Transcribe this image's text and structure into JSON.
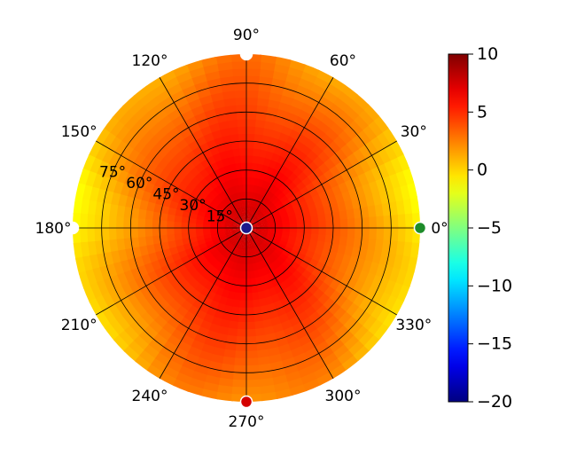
{
  "chart_data": {
    "type": "heatmap",
    "projection": "polar",
    "title": "",
    "theta_tick_labels": [
      "0°",
      "30°",
      "60°",
      "90°",
      "120°",
      "150°",
      "180°",
      "210°",
      "240°",
      "270°",
      "300°",
      "330°"
    ],
    "theta_ticks_deg": [
      0,
      30,
      60,
      90,
      120,
      150,
      180,
      210,
      240,
      270,
      300,
      330
    ],
    "r_tick_labels": [
      "15°",
      "30°",
      "45°",
      "60°",
      "75°"
    ],
    "r_ticks": [
      15,
      30,
      45,
      60,
      75
    ],
    "r_range": [
      0,
      90
    ],
    "grid": true,
    "colormap": "jet",
    "colorbar": {
      "tick_labels": [
        "10",
        "5",
        "0",
        "−5",
        "−10",
        "−15",
        "−20"
      ],
      "ticks": [
        10,
        5,
        0,
        -5,
        -10,
        -15,
        -20
      ],
      "range": [
        -20,
        10
      ],
      "placement": "right"
    },
    "field_description_values": {
      "center_value": 8,
      "rim_value_at_0_and_180_deg": -1,
      "rim_value_at_90_and_270_deg": 2.5,
      "lobe_max_near_45_135_225_315_deg": 8.5
    },
    "markers": [
      {
        "theta": 0,
        "r": 0,
        "color": "#1a1a8c"
      },
      {
        "theta": 0,
        "r": 90,
        "color": "#1e8c2a"
      },
      {
        "theta": 90,
        "r": 90,
        "color": "#ffffff"
      },
      {
        "theta": 180,
        "r": 90,
        "color": "#ffffff"
      },
      {
        "theta": 270,
        "r": 90,
        "color": "#d40000"
      }
    ]
  }
}
